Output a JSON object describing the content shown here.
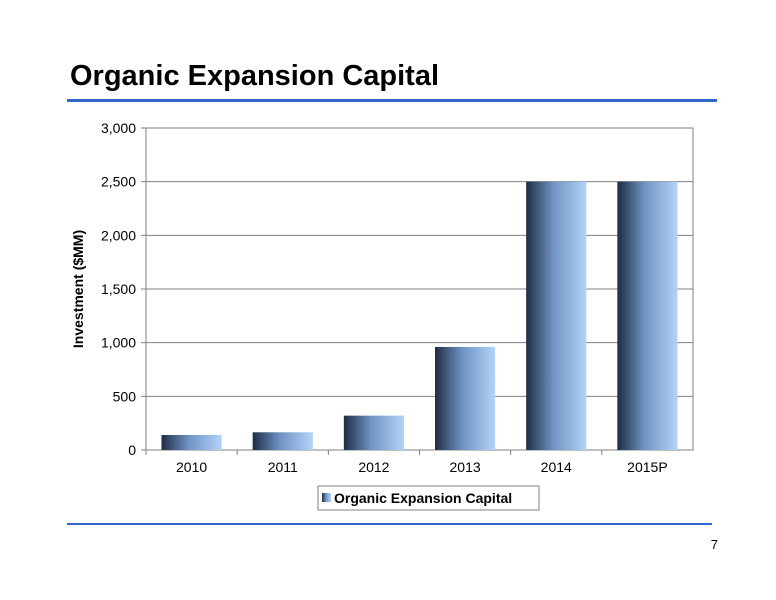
{
  "slide": {
    "title": "Organic Expansion Capital",
    "page_number": "7"
  },
  "colors": {
    "accent_rule": "#3366cc",
    "bar_light": "#a9cdf5",
    "bar_dark": "#23324a"
  },
  "chart_data": {
    "type": "bar",
    "categories": [
      "2010",
      "2011",
      "2012",
      "2013",
      "2014",
      "2015P"
    ],
    "series": [
      {
        "name": "Organic Expansion Capital",
        "values": [
          140,
          165,
          320,
          960,
          2500,
          2500
        ]
      }
    ],
    "ylabel": "Investment ($MM)",
    "xlabel": "",
    "ylim": [
      0,
      3000
    ],
    "yticks": [
      0,
      500,
      1000,
      1500,
      2000,
      2500,
      3000
    ],
    "ytick_labels": [
      "0",
      "500",
      "1,000",
      "1,500",
      "2,000",
      "2,500",
      "3,000"
    ],
    "grid": true,
    "legend_position": "bottom"
  }
}
